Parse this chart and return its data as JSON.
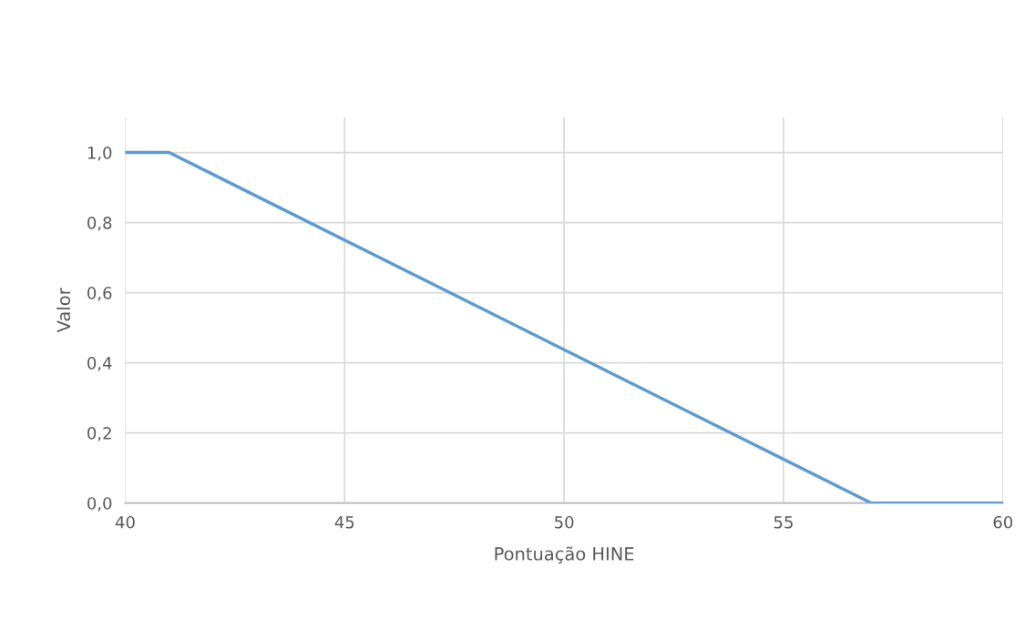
{
  "chart_data": {
    "type": "line",
    "xlabel": "Pontuação HINE",
    "ylabel": "Valor",
    "x": [
      40,
      41,
      57,
      60
    ],
    "series": [
      {
        "color": "#5b9bd5",
        "values": [
          1.0,
          1.0,
          0.0,
          0.0
        ]
      }
    ],
    "xlim": [
      40,
      60
    ],
    "xticks": [
      40,
      45,
      50,
      55,
      60
    ],
    "ylim": [
      0,
      1.1
    ],
    "yticks": [
      {
        "value": 0,
        "label": "0,0"
      },
      {
        "value": 0.2,
        "label": "0,2"
      },
      {
        "value": 0.4,
        "label": "0,4"
      },
      {
        "value": 0.6,
        "label": "0,6"
      },
      {
        "value": 0.8,
        "label": "0,8"
      },
      {
        "value": 1.0,
        "label": "1,0"
      }
    ],
    "grid": true,
    "legend": false,
    "marker": "none",
    "line_style": "solid"
  }
}
